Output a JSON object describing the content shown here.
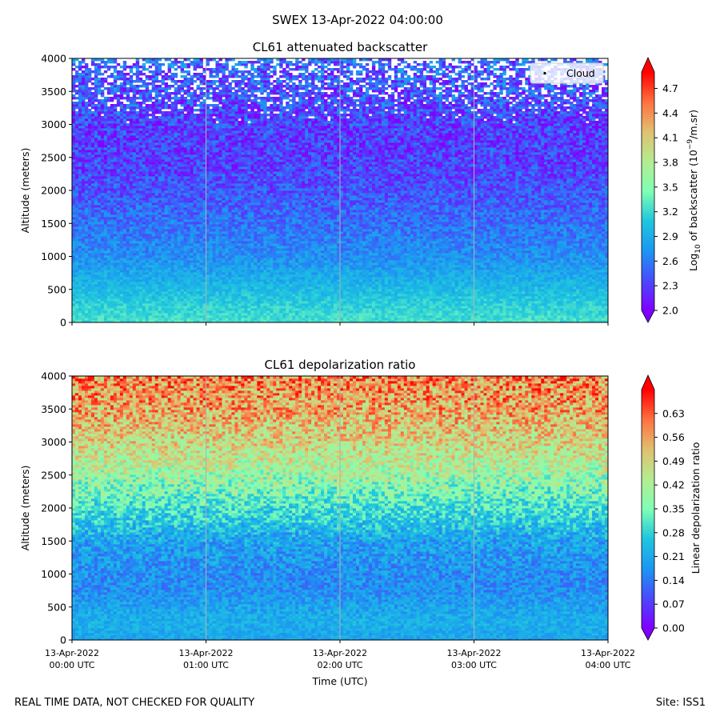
{
  "figure": {
    "suptitle": "SWEX 13-Apr-2022 04:00:00",
    "footer_left": "REAL TIME DATA, NOT CHECKED FOR QUALITY",
    "footer_right": "Site: ISS1"
  },
  "chart_data": [
    {
      "type": "heatmap",
      "title": "CL61 attenuated backscatter",
      "ylabel": "Altitude (meters)",
      "xlabel": "",
      "ylim": [
        0,
        4000
      ],
      "yticks": [
        0,
        500,
        1000,
        1500,
        2000,
        2500,
        3000,
        3500,
        4000
      ],
      "x_range": [
        "2022-04-13 00:00 UTC",
        "2022-04-13 04:00 UTC"
      ],
      "xticks": [],
      "vertical_grid": true,
      "legend": {
        "entries": [
          "Cloud"
        ],
        "placement": "top-right"
      },
      "colorbar": {
        "label_prefix": "Log",
        "label_sub": "10",
        "label_mid": " of backscatter (10",
        "label_sup": "−9",
        "label_suffix": "/m.sr)",
        "range": [
          2.0,
          4.9
        ],
        "ticks": [
          "2.0",
          "2.3",
          "2.6",
          "2.9",
          "3.2",
          "3.5",
          "3.8",
          "4.1",
          "4.4",
          "4.7"
        ],
        "tick_values": [
          2.0,
          2.3,
          2.6,
          2.9,
          3.2,
          3.5,
          3.8,
          4.1,
          4.4,
          4.7
        ],
        "colormap": "rainbow",
        "extend": "both"
      },
      "profile": {
        "altitude_m": [
          0,
          250,
          500,
          750,
          1000,
          1500,
          2000,
          2500,
          3000,
          3500,
          4000
        ],
        "typical_value": [
          3.25,
          3.15,
          3.0,
          2.85,
          2.7,
          2.55,
          2.4,
          2.3,
          2.3,
          2.4,
          2.5
        ]
      }
    },
    {
      "type": "heatmap",
      "title": "CL61 depolarization ratio",
      "ylabel": "Altitude (meters)",
      "xlabel": "Time (UTC)",
      "ylim": [
        0,
        4000
      ],
      "yticks": [
        0,
        500,
        1000,
        1500,
        2000,
        2500,
        3000,
        3500,
        4000
      ],
      "x_range": [
        "2022-04-13 00:00 UTC",
        "2022-04-13 04:00 UTC"
      ],
      "xticks": [
        {
          "line1": "13-Apr-2022",
          "line2": "00:00 UTC"
        },
        {
          "line1": "13-Apr-2022",
          "line2": "01:00 UTC"
        },
        {
          "line1": "13-Apr-2022",
          "line2": "02:00 UTC"
        },
        {
          "line1": "13-Apr-2022",
          "line2": "03:00 UTC"
        },
        {
          "line1": "13-Apr-2022",
          "line2": "04:00 UTC"
        }
      ],
      "vertical_grid": true,
      "colorbar": {
        "label": "Linear depolarization ratio",
        "range": [
          0.0,
          0.7
        ],
        "ticks": [
          "0.00",
          "0.07",
          "0.14",
          "0.21",
          "0.28",
          "0.35",
          "0.42",
          "0.49",
          "0.56",
          "0.63"
        ],
        "tick_values": [
          0.0,
          0.07,
          0.14,
          0.21,
          0.28,
          0.35,
          0.42,
          0.49,
          0.56,
          0.63
        ],
        "colormap": "rainbow",
        "extend": "both"
      },
      "profile": {
        "altitude_m": [
          0,
          250,
          500,
          750,
          1000,
          1500,
          2000,
          2500,
          3000,
          3500,
          4000
        ],
        "typical_value": [
          0.2,
          0.22,
          0.2,
          0.17,
          0.17,
          0.2,
          0.3,
          0.4,
          0.48,
          0.55,
          0.58
        ]
      }
    }
  ]
}
